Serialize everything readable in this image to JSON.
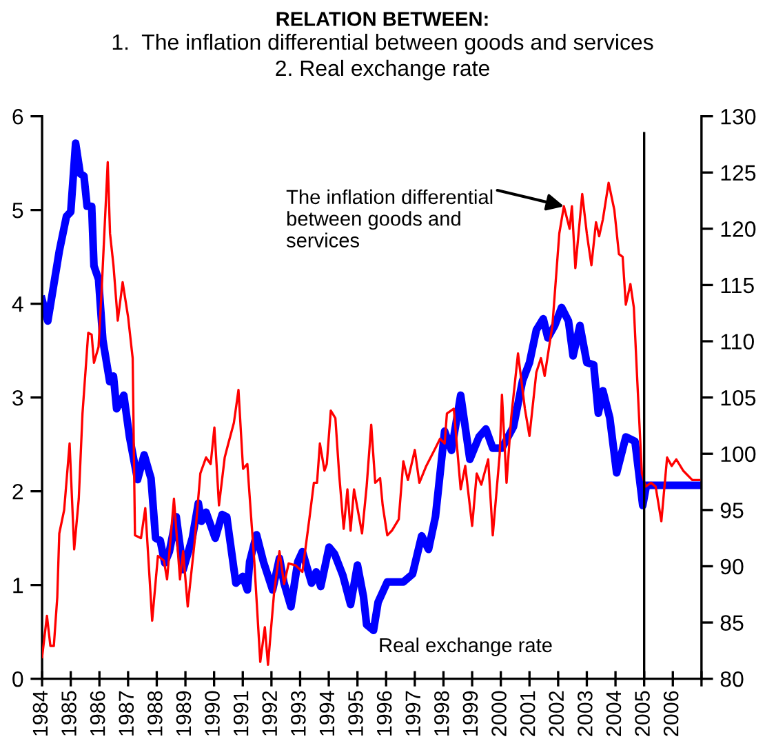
{
  "chart_data": {
    "type": "line",
    "title": "RELATION BETWEEN:",
    "subtitle": "1.  The inflation differential between goods and services\n2. Real exchange rate",
    "xlim": [
      1984,
      2007
    ],
    "xticks": [
      1984,
      1985,
      1986,
      1987,
      1988,
      1989,
      1990,
      1991,
      1992,
      1993,
      1994,
      1995,
      1996,
      1997,
      1998,
      1999,
      2000,
      2001,
      2002,
      2003,
      2004,
      2005,
      2006,
      {
        "value": 2007,
        "label": null
      }
    ],
    "ylim": [
      0,
      6
    ],
    "yticks": [
      0,
      1,
      2,
      3,
      4,
      5,
      6
    ],
    "y2lim": [
      80,
      130
    ],
    "y2ticks": [
      80,
      85,
      90,
      95,
      100,
      105,
      110,
      115,
      120,
      125,
      130
    ],
    "grid": false,
    "legend": false,
    "marker": "none",
    "line_style": "solid",
    "ref_lines": [
      {
        "axis": "x",
        "value": 2005,
        "color": "#000000"
      }
    ],
    "annotations": [
      {
        "text": "The inflation differential\nbetween goods and\nservices",
        "x": 2002.2,
        "y": 5.04
      }
    ],
    "series": [
      {
        "color": "#ff0000",
        "x": [
          1984.0,
          1984.17,
          1984.29,
          1984.41,
          1984.53,
          1984.6,
          1984.77,
          1984.96,
          1985.12,
          1985.28,
          1985.41,
          1985.61,
          1985.73,
          1985.81,
          1985.97,
          1986.08,
          1986.29,
          1986.37,
          1986.49,
          1986.64,
          1986.81,
          1987.0,
          1987.16,
          1987.24,
          1987.45,
          1987.6,
          1987.84,
          1988.04,
          1988.25,
          1988.36,
          1988.6,
          1988.81,
          1988.92,
          1989.08,
          1989.32,
          1989.52,
          1989.72,
          1989.88,
          1990.01,
          1990.17,
          1990.37,
          1990.48,
          1990.69,
          1990.85,
          1991.01,
          1991.16,
          1991.4,
          1991.61,
          1991.77,
          1991.88,
          1992.09,
          1992.28,
          1992.44,
          1992.6,
          1992.84,
          1993.08,
          1993.32,
          1993.48,
          1993.59,
          1993.69,
          1993.85,
          1993.93,
          1994.07,
          1994.23,
          1994.36,
          1994.52,
          1994.65,
          1994.76,
          1994.88,
          1995.16,
          1995.32,
          1995.48,
          1995.62,
          1995.79,
          1995.88,
          1996.04,
          1996.2,
          1996.44,
          1996.6,
          1996.76,
          1997.0,
          1997.16,
          1997.4,
          1997.72,
          1997.88,
          1998.04,
          1998.12,
          1998.36,
          1998.6,
          1998.76,
          1999.0,
          1999.16,
          1999.32,
          1999.56,
          1999.72,
          1999.96,
          2000.04,
          2000.2,
          2000.36,
          2000.6,
          2000.84,
          2001.0,
          2001.24,
          2001.4,
          2001.53,
          2001.8,
          2002.04,
          2002.2,
          2002.4,
          2002.48,
          2002.6,
          2002.84,
          2003.0,
          2003.16,
          2003.32,
          2003.43,
          2003.56,
          2003.76,
          2003.96,
          2004.12,
          2004.25,
          2004.36,
          2004.52,
          2004.64,
          2004.76,
          2004.92,
          2005.05,
          2005.24,
          2005.4,
          2005.6,
          2005.8,
          2005.96,
          2006.12,
          2006.36,
          2006.68,
          2006.92
        ],
        "values": [
          0.23,
          0.67,
          0.35,
          0.35,
          0.87,
          1.55,
          1.8,
          2.51,
          1.38,
          1.92,
          2.83,
          3.69,
          3.67,
          3.37,
          3.54,
          4.16,
          5.51,
          4.75,
          4.41,
          3.82,
          4.23,
          3.86,
          3.42,
          1.53,
          1.5,
          1.82,
          0.62,
          1.31,
          1.26,
          1.06,
          1.92,
          1.06,
          1.36,
          0.77,
          1.46,
          2.19,
          2.36,
          2.29,
          2.68,
          1.85,
          2.36,
          2.49,
          2.73,
          3.08,
          2.24,
          2.29,
          1.26,
          0.18,
          0.55,
          0.15,
          0.91,
          1.36,
          1.01,
          1.23,
          1.21,
          1.14,
          1.7,
          2.09,
          2.09,
          2.51,
          2.22,
          2.29,
          2.86,
          2.78,
          2.19,
          1.6,
          2.02,
          1.58,
          2.02,
          1.55,
          2.05,
          2.71,
          2.09,
          2.14,
          1.85,
          1.53,
          1.58,
          1.7,
          2.32,
          2.12,
          2.44,
          2.09,
          2.27,
          2.46,
          2.56,
          2.51,
          2.83,
          2.88,
          2.02,
          2.27,
          1.63,
          2.19,
          2.07,
          2.34,
          1.53,
          2.39,
          3.03,
          2.09,
          2.78,
          3.47,
          2.88,
          2.59,
          3.27,
          3.42,
          3.23,
          3.77,
          4.75,
          5.04,
          4.8,
          5.04,
          4.38,
          5.17,
          4.75,
          4.41,
          4.87,
          4.72,
          4.9,
          5.29,
          5.0,
          4.53,
          4.5,
          3.99,
          4.21,
          3.96,
          3.18,
          2.19,
          2.05,
          2.09,
          2.05,
          1.68,
          2.36,
          2.27,
          2.34,
          2.22,
          2.12,
          2.12
        ]
      },
      {
        "name": "Real exchange rate",
        "color": "#0000ff",
        "axis": "y2",
        "x": [
          1984.0,
          1984.2,
          1984.6,
          1984.85,
          1985.0,
          1985.17,
          1985.33,
          1985.46,
          1985.57,
          1985.73,
          1985.81,
          1985.97,
          1986.12,
          1986.36,
          1986.49,
          1986.6,
          1986.85,
          1987.05,
          1987.33,
          1987.56,
          1987.8,
          1987.96,
          1988.12,
          1988.28,
          1988.44,
          1988.68,
          1988.92,
          1989.24,
          1989.45,
          1989.56,
          1989.72,
          1990.04,
          1990.28,
          1990.44,
          1990.76,
          1991.0,
          1991.16,
          1991.24,
          1991.48,
          1991.72,
          1992.04,
          1992.28,
          1992.44,
          1992.68,
          1992.92,
          1993.08,
          1993.4,
          1993.56,
          1993.72,
          1994.01,
          1994.2,
          1994.49,
          1994.76,
          1995.0,
          1995.21,
          1995.32,
          1995.56,
          1995.72,
          1996.04,
          1996.6,
          1996.92,
          1997.24,
          1997.48,
          1997.72,
          1998.04,
          1998.28,
          1998.6,
          1998.92,
          1999.24,
          1999.48,
          1999.72,
          2000.04,
          2000.44,
          2000.76,
          2001.0,
          2001.24,
          2001.48,
          2001.64,
          2001.88,
          2002.12,
          2002.36,
          2002.52,
          2002.76,
          2003.0,
          2003.24,
          2003.4,
          2003.56,
          2003.8,
          2004.04,
          2004.36,
          2004.68,
          2004.95,
          2005.08,
          2006.92
        ],
        "values": [
          113.7,
          111.8,
          118.0,
          121.1,
          121.5,
          127.6,
          124.9,
          124.7,
          122.0,
          122.0,
          116.7,
          115.5,
          110.1,
          106.4,
          106.9,
          104.0,
          105.2,
          101.5,
          97.7,
          99.9,
          97.8,
          92.5,
          92.3,
          90.3,
          91.3,
          94.4,
          89.7,
          92.5,
          95.6,
          94.0,
          94.8,
          92.5,
          94.6,
          94.4,
          88.5,
          89.1,
          87.9,
          90.4,
          92.8,
          90.4,
          87.9,
          90.7,
          88.5,
          86.4,
          90.4,
          91.3,
          88.5,
          89.5,
          88.2,
          91.7,
          91.1,
          89.2,
          86.6,
          90.1,
          87.3,
          84.8,
          84.3,
          86.8,
          88.6,
          88.6,
          89.3,
          92.7,
          91.5,
          94.4,
          102.0,
          100.3,
          105.2,
          99.5,
          101.5,
          102.2,
          100.5,
          100.5,
          102.4,
          106.5,
          108.1,
          111.0,
          112.0,
          110.3,
          111.4,
          113.0,
          111.8,
          108.7,
          111.4,
          108.1,
          107.9,
          103.6,
          105.6,
          103.2,
          98.3,
          101.5,
          101.1,
          95.4,
          97.2,
          97.2
        ]
      }
    ]
  }
}
